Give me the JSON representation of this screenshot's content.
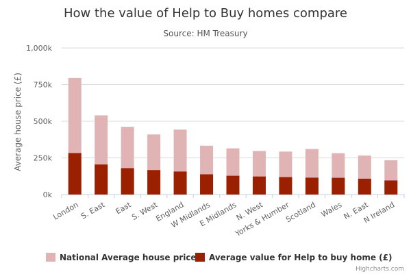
{
  "chart_data": {
    "type": "bar",
    "stacked": "overlap",
    "title": "How the value of Help to Buy homes compare",
    "subtitle": "Source: HM Treasury",
    "ylabel": "Average house price (£)",
    "ylim": [
      0,
      1000000
    ],
    "yticks": [
      {
        "value": 0,
        "label": "0k"
      },
      {
        "value": 250000,
        "label": "250k"
      },
      {
        "value": 500000,
        "label": "500k"
      },
      {
        "value": 750000,
        "label": "750k"
      },
      {
        "value": 1000000,
        "label": "1,000k"
      }
    ],
    "grid": true,
    "legend_position": "bottom",
    "categories": [
      "London",
      "S. East",
      "East",
      "S. West",
      "England",
      "W Midlands",
      "E Midlands",
      "N. West",
      "Yorks & Humber",
      "Scotland",
      "Wales",
      "N. East",
      "N Ireland"
    ],
    "series": [
      {
        "name": "National Average house price",
        "color": "#e0b4b4",
        "values": [
          795000,
          540000,
          462000,
          410000,
          443000,
          333000,
          315000,
          297000,
          293000,
          311000,
          282000,
          266000,
          234000
        ]
      },
      {
        "name": "Average value for Help to buy home (£)",
        "color": "#9b2000",
        "values": [
          283000,
          205000,
          180000,
          167000,
          157000,
          138000,
          128000,
          123000,
          119000,
          115000,
          114000,
          108000,
          96000
        ]
      }
    ],
    "credit": "Highcharts.com"
  },
  "colors": {
    "grid": "#d8d8d8",
    "axis": "#c0d0e0",
    "text": "#333333",
    "label": "#606060"
  }
}
